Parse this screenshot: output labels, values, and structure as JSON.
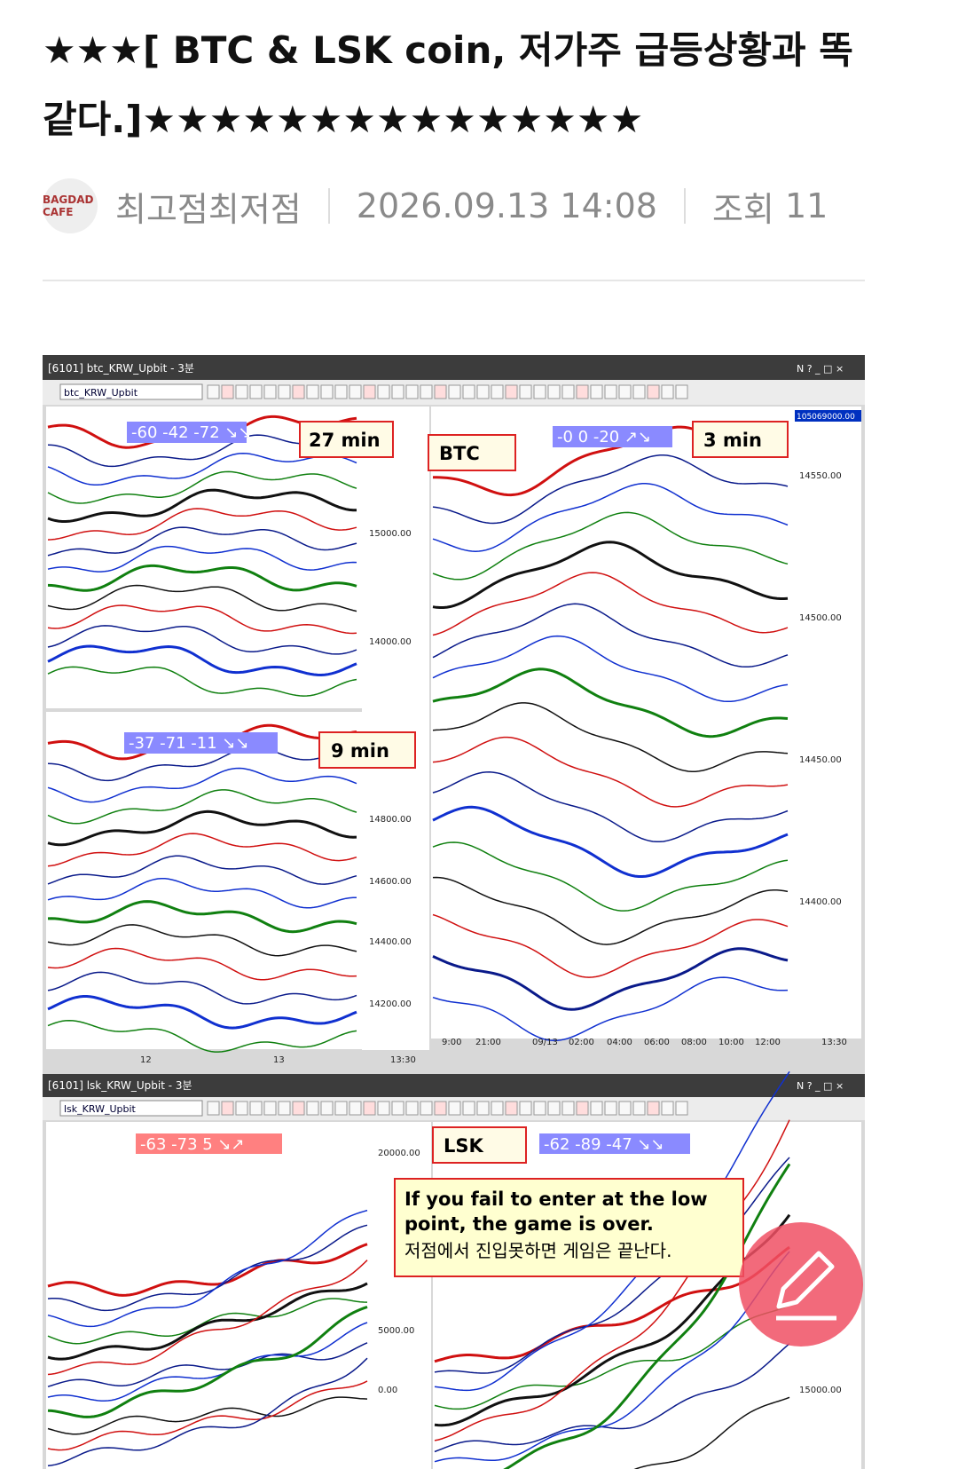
{
  "header": {
    "title": "★★★[ BTC & LSK coin, 저가주 급등상황과 똑같다.]★★★★★★★★★★★★★★★"
  },
  "meta": {
    "avatar": "BAGDAD CAFE",
    "author": "최고점최저점",
    "date": "2026.09.13 14:08",
    "views_label": "조회",
    "views": "11"
  },
  "image": {
    "btc_window": {
      "title": "[6101] btc_KRW_Upbit - 3분",
      "symbol": "btc_KRW_Upbit",
      "left_top": {
        "label": "27 min",
        "reading": "-60  -42  -72  ↘↘",
        "ticks": [
          "15000.00",
          "14000.00"
        ]
      },
      "right": {
        "label": "BTC",
        "label2": "3 min",
        "reading": "-0  0  -20  ↗↘",
        "ticks": [
          "14550.00",
          "14500.00",
          "14450.00",
          "14400.00"
        ],
        "price": "105069000.00",
        "xticks": [
          "9:00",
          "21:00",
          "09/13",
          "02:00",
          "04:00",
          "06:00",
          "08:00",
          "10:00",
          "12:00",
          "13:30"
        ]
      },
      "left_mid": {
        "label": "9 min",
        "reading": "-37  -71  -11  ↘↘",
        "ticks": [
          "14800.00",
          "14600.00",
          "14400.00",
          "14200.00"
        ],
        "xticks": [
          "12",
          "13",
          "13:30"
        ]
      }
    },
    "lsk_window": {
      "title": "[6101] lsk_KRW_Upbit - 3분",
      "symbol": "lsk_KRW_Upbit",
      "left": {
        "reading": "-63  -73  5  ↘↗",
        "ticks": [
          "20000.00",
          "5000.00",
          "0.00"
        ]
      },
      "right": {
        "label": "LSK",
        "reading": "-62  -89  -47  ↘↘",
        "ticks": [
          "15000.00"
        ]
      },
      "note": [
        "If you fail to enter at the low",
        "point, the game is over.",
        "저점에서 진입못하면 게임은 끝난다."
      ]
    }
  }
}
